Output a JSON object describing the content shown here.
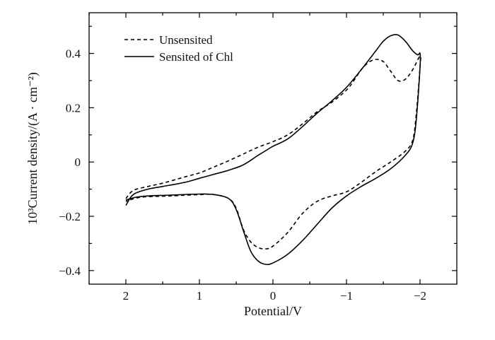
{
  "chart_data": {
    "type": "line",
    "title": "",
    "xlabel": "Potential/V",
    "ylabel": "10³Current density/(A · cm⁻²)",
    "xlim": [
      2.5,
      -2.5
    ],
    "ylim": [
      -0.45,
      0.55
    ],
    "x_ticks": [
      {
        "value": 2,
        "label": "2"
      },
      {
        "value": 1,
        "label": "1"
      },
      {
        "value": 0,
        "label": "0"
      },
      {
        "value": -1,
        "label": "−1"
      },
      {
        "value": -2,
        "label": "−2"
      }
    ],
    "y_ticks": [
      {
        "value": 0.4,
        "label": "0.4"
      },
      {
        "value": 0.2,
        "label": "0.2"
      },
      {
        "value": 0,
        "label": "0"
      },
      {
        "value": -0.2,
        "label": "−0.2"
      },
      {
        "value": -0.4,
        "label": "−0.4"
      }
    ],
    "x_minor_step": 0.5,
    "y_minor_step": 0.1,
    "grid": false,
    "legend_position": "top-left",
    "series": [
      {
        "name": "Unsensited",
        "style": "dashed",
        "color": "#000000",
        "points": [
          [
            2.0,
            -0.135
          ],
          [
            1.9,
            -0.105
          ],
          [
            1.7,
            -0.09
          ],
          [
            1.5,
            -0.078
          ],
          [
            1.2,
            -0.055
          ],
          [
            1.0,
            -0.04
          ],
          [
            0.8,
            -0.018
          ],
          [
            0.6,
            0.005
          ],
          [
            0.4,
            0.03
          ],
          [
            0.2,
            0.055
          ],
          [
            0.0,
            0.075
          ],
          [
            -0.2,
            0.1
          ],
          [
            -0.4,
            0.14
          ],
          [
            -0.6,
            0.185
          ],
          [
            -0.8,
            0.22
          ],
          [
            -1.0,
            0.265
          ],
          [
            -1.1,
            0.3
          ],
          [
            -1.2,
            0.34
          ],
          [
            -1.3,
            0.367
          ],
          [
            -1.4,
            0.378
          ],
          [
            -1.5,
            0.37
          ],
          [
            -1.6,
            0.335
          ],
          [
            -1.7,
            0.3
          ],
          [
            -1.8,
            0.305
          ],
          [
            -1.9,
            0.34
          ],
          [
            -2.0,
            0.39
          ],
          [
            -2.0,
            0.35
          ],
          [
            -1.95,
            0.18
          ],
          [
            -1.9,
            0.08
          ],
          [
            -1.8,
            0.04
          ],
          [
            -1.6,
            0.0
          ],
          [
            -1.4,
            -0.035
          ],
          [
            -1.2,
            -0.075
          ],
          [
            -1.0,
            -0.11
          ],
          [
            -0.8,
            -0.125
          ],
          [
            -0.6,
            -0.145
          ],
          [
            -0.4,
            -0.19
          ],
          [
            -0.2,
            -0.26
          ],
          [
            0.0,
            -0.31
          ],
          [
            0.1,
            -0.32
          ],
          [
            0.2,
            -0.315
          ],
          [
            0.3,
            -0.295
          ],
          [
            0.4,
            -0.25
          ],
          [
            0.5,
            -0.17
          ],
          [
            0.6,
            -0.135
          ],
          [
            0.8,
            -0.12
          ],
          [
            1.0,
            -0.12
          ],
          [
            1.4,
            -0.125
          ],
          [
            1.8,
            -0.13
          ],
          [
            2.0,
            -0.145
          ]
        ]
      },
      {
        "name": "Sensited of Chl",
        "style": "solid",
        "color": "#000000",
        "points": [
          [
            2.0,
            -0.16
          ],
          [
            1.9,
            -0.12
          ],
          [
            1.7,
            -0.1
          ],
          [
            1.5,
            -0.09
          ],
          [
            1.2,
            -0.075
          ],
          [
            1.0,
            -0.06
          ],
          [
            0.8,
            -0.045
          ],
          [
            0.6,
            -0.03
          ],
          [
            0.4,
            -0.01
          ],
          [
            0.2,
            0.025
          ],
          [
            0.05,
            0.05
          ],
          [
            0.0,
            0.058
          ],
          [
            -0.2,
            0.085
          ],
          [
            -0.4,
            0.13
          ],
          [
            -0.6,
            0.18
          ],
          [
            -0.8,
            0.225
          ],
          [
            -1.0,
            0.275
          ],
          [
            -1.2,
            0.34
          ],
          [
            -1.4,
            0.41
          ],
          [
            -1.5,
            0.445
          ],
          [
            -1.6,
            0.465
          ],
          [
            -1.7,
            0.468
          ],
          [
            -1.8,
            0.445
          ],
          [
            -1.9,
            0.41
          ],
          [
            -1.97,
            0.395
          ],
          [
            -2.0,
            0.4
          ],
          [
            -2.0,
            0.35
          ],
          [
            -1.95,
            0.16
          ],
          [
            -1.9,
            0.07
          ],
          [
            -1.8,
            0.025
          ],
          [
            -1.6,
            -0.025
          ],
          [
            -1.4,
            -0.06
          ],
          [
            -1.2,
            -0.09
          ],
          [
            -1.0,
            -0.125
          ],
          [
            -0.8,
            -0.17
          ],
          [
            -0.6,
            -0.23
          ],
          [
            -0.4,
            -0.29
          ],
          [
            -0.2,
            -0.34
          ],
          [
            0.0,
            -0.372
          ],
          [
            0.1,
            -0.377
          ],
          [
            0.2,
            -0.365
          ],
          [
            0.3,
            -0.33
          ],
          [
            0.4,
            -0.255
          ],
          [
            0.5,
            -0.175
          ],
          [
            0.6,
            -0.135
          ],
          [
            0.8,
            -0.12
          ],
          [
            1.0,
            -0.118
          ],
          [
            1.4,
            -0.122
          ],
          [
            1.8,
            -0.127
          ],
          [
            2.0,
            -0.14
          ]
        ]
      }
    ]
  }
}
